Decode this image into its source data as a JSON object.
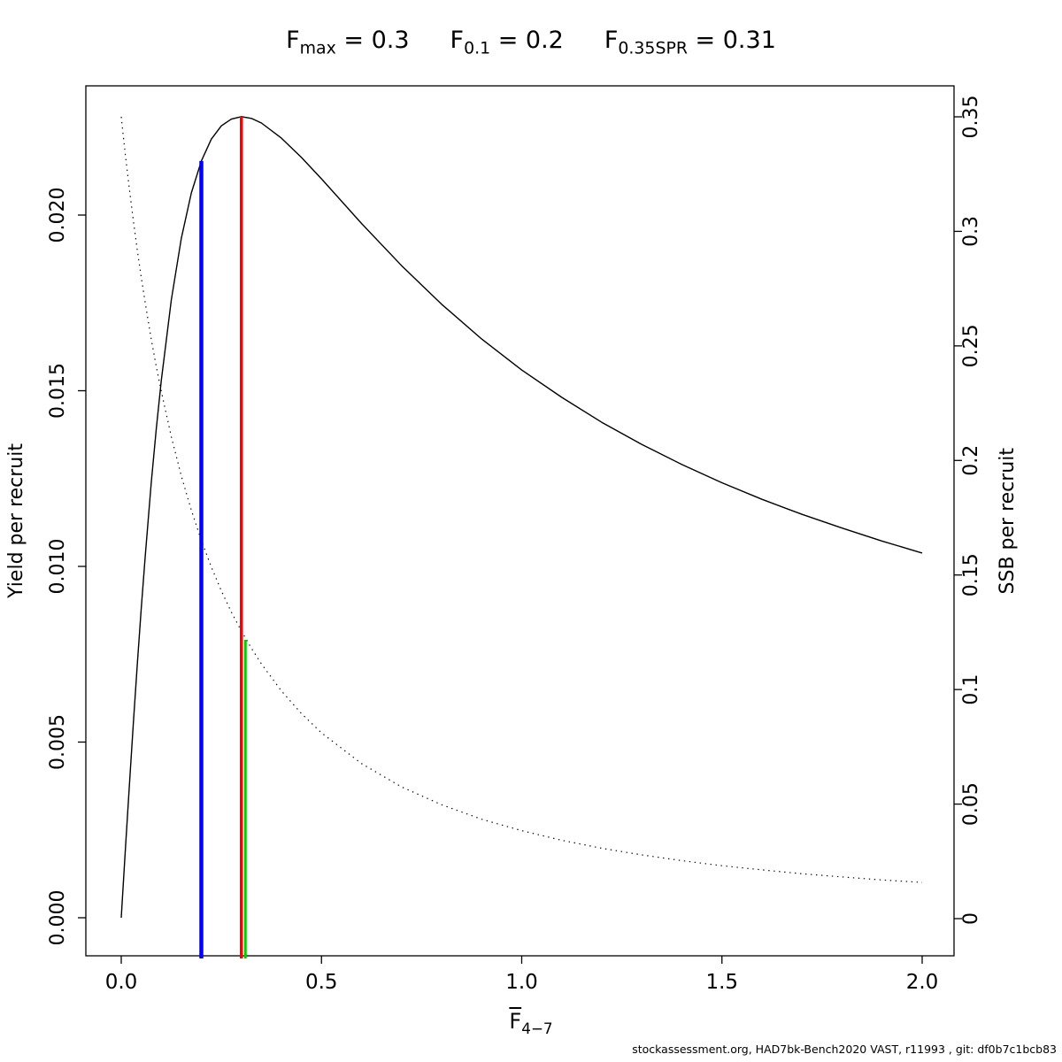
{
  "title": {
    "parts": [
      {
        "base": "F",
        "sub": "max",
        "rest": " = 0.3"
      },
      {
        "base": "F",
        "sub": "0.1",
        "rest": " = 0.2"
      },
      {
        "base": "F",
        "sub": "0.35SPR",
        "rest": " = 0.31"
      }
    ]
  },
  "footer": "stockassessment.org, HAD7bk-Bench2020 VAST, r11993 , git: df0b7c1bcb83",
  "chart_data": {
    "type": "line",
    "title": "Fmax = 0.3   F0.1 = 0.2   F0.35SPR = 0.31",
    "grid": false,
    "legend": "none",
    "x_axis": {
      "label_base": "F",
      "label_overline": true,
      "label_sub": "4−7",
      "range": [
        0,
        2
      ],
      "ticks": [
        0,
        0.5,
        1,
        1.5,
        2
      ],
      "tick_labels": [
        "0.0",
        "0.5",
        "1.0",
        "1.5",
        "2.0"
      ]
    },
    "y_left": {
      "label": "Yield per recruit",
      "range": [
        0,
        0.0235
      ],
      "ticks": [
        0,
        0.005,
        0.01,
        0.015,
        0.02
      ],
      "tick_labels": [
        "0.000",
        "0.005",
        "0.010",
        "0.015",
        "0.020"
      ]
    },
    "y_right": {
      "label": "SSB per recruit",
      "range": [
        0,
        0.3665
      ],
      "ticks": [
        0,
        0.05,
        0.1,
        0.15,
        0.2,
        0.25,
        0.3,
        0.35
      ],
      "tick_labels": [
        "0",
        "0.05",
        "0.1",
        "0.15",
        "0.2",
        "0.25",
        "0.3",
        "0.35"
      ]
    },
    "series": [
      {
        "name": "yield-per-recruit",
        "axis": "left",
        "style": "solid",
        "color": "#000000",
        "x": [
          0,
          0.01,
          0.02,
          0.03,
          0.04,
          0.05,
          0.06,
          0.075,
          0.0875,
          0.1,
          0.125,
          0.15,
          0.175,
          0.2,
          0.225,
          0.25,
          0.275,
          0.3,
          0.325,
          0.35,
          0.4,
          0.45,
          0.5,
          0.6,
          0.7,
          0.8,
          0.9,
          1.0,
          1.1,
          1.2,
          1.3,
          1.4,
          1.5,
          1.6,
          1.7,
          1.8,
          1.9,
          2.0
        ],
        "y": [
          0,
          0.00188,
          0.00373,
          0.00551,
          0.0072,
          0.0088,
          0.01032,
          0.01238,
          0.01392,
          0.0153,
          0.01759,
          0.01934,
          0.02063,
          0.02154,
          0.02216,
          0.02254,
          0.02273,
          0.0228,
          0.02275,
          0.02262,
          0.02219,
          0.02164,
          0.02103,
          0.01976,
          0.01856,
          0.01746,
          0.01647,
          0.01559,
          0.01481,
          0.0141,
          0.01347,
          0.0129,
          0.01238,
          0.01191,
          0.01148,
          0.01109,
          0.01072,
          0.01038
        ]
      },
      {
        "name": "ssb-per-recruit",
        "axis": "right",
        "style": "dotted",
        "color": "#000000",
        "x": [
          0,
          0.01,
          0.02,
          0.03,
          0.04,
          0.05,
          0.06,
          0.075,
          0.0875,
          0.1,
          0.125,
          0.15,
          0.175,
          0.2,
          0.225,
          0.25,
          0.275,
          0.3,
          0.325,
          0.35,
          0.4,
          0.45,
          0.5,
          0.6,
          0.7,
          0.8,
          0.9,
          1.0,
          1.1,
          1.2,
          1.3,
          1.4,
          1.5,
          1.6,
          1.7,
          1.8,
          1.9,
          2.0
        ],
        "y": [
          0.35,
          0.3338,
          0.3188,
          0.3049,
          0.2919,
          0.2799,
          0.2686,
          0.2529,
          0.241,
          0.2301,
          0.2103,
          0.1932,
          0.1783,
          0.1651,
          0.1535,
          0.1431,
          0.1338,
          0.1255,
          0.118,
          0.1112,
          0.0994,
          0.0895,
          0.0811,
          0.0677,
          0.0575,
          0.0497,
          0.0434,
          0.0384,
          0.0342,
          0.0307,
          0.0278,
          0.0253,
          0.0231,
          0.0213,
          0.0196,
          0.0182,
          0.0169,
          0.0158
        ]
      }
    ],
    "reference_lines": [
      {
        "name": "F0.1",
        "x": 0.2,
        "color": "#0000ff",
        "top_axis": "left",
        "top_value": 0.02154
      },
      {
        "name": "Fmax",
        "x": 0.3,
        "color": "#ff0000",
        "top_axis": "left",
        "top_value": 0.0228
      },
      {
        "name": "F0.35SPR",
        "x": 0.31,
        "color": "#00cc00",
        "top_axis": "right",
        "top_value": 0.1217
      }
    ]
  }
}
